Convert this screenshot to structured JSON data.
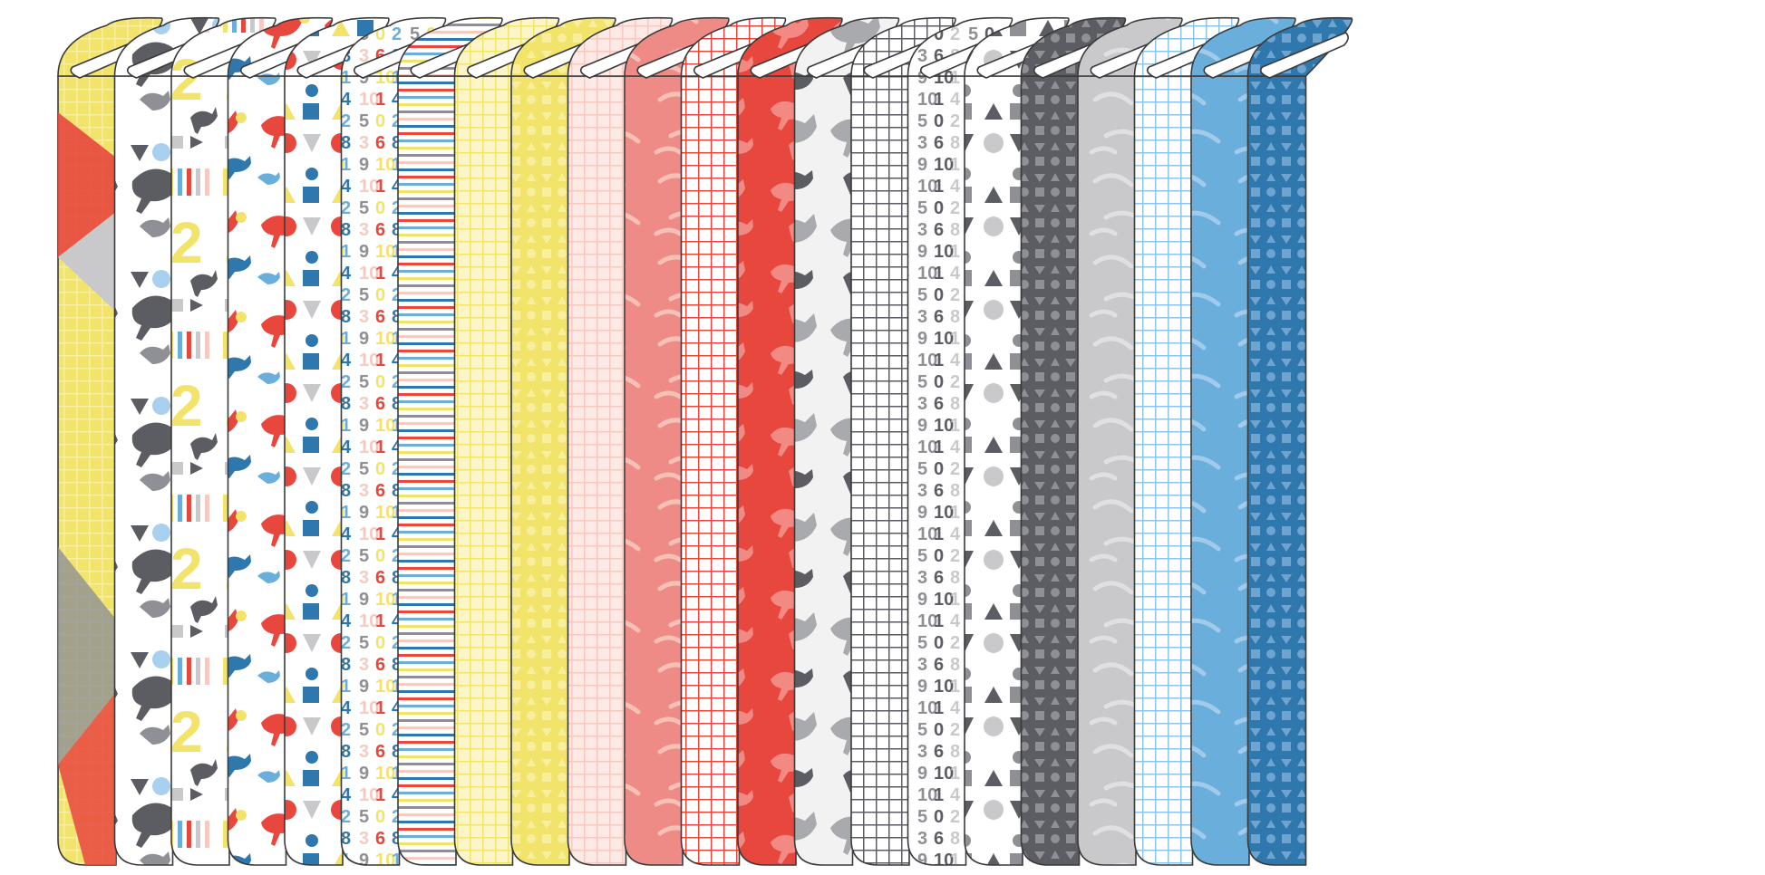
{
  "palette": {
    "red": "#e8473e",
    "coral": "#ef8b86",
    "pink": "#f7c9c0",
    "yellow": "#f2e36b",
    "pale_yellow": "#f7ef9e",
    "light_gray": "#c9c9cb",
    "mid_gray": "#8f9095",
    "dark_gray": "#5c5d63",
    "sky_blue": "#6aaedc",
    "teal_blue": "#2f78ad",
    "outline": "#3a3a3a",
    "white": "#ffffff"
  },
  "bolts": [
    {
      "id": "bolt-01",
      "base": "#f2e36b",
      "pattern": "patchwork-grid",
      "fg": "#e8473e"
    },
    {
      "id": "bolt-02",
      "base": "#ffffff",
      "pattern": "animals-shapes",
      "fg": "#4f5058"
    },
    {
      "id": "bolt-03",
      "base": "#ffffff",
      "pattern": "numbers-animals-stripes",
      "fg": "#f2e36b"
    },
    {
      "id": "bolt-04",
      "base": "#ffffff",
      "pattern": "animal-toss-multicolor",
      "fg": "#e8473e"
    },
    {
      "id": "bolt-05",
      "base": "#ffffff",
      "pattern": "shapes-multicolor",
      "fg": "#2f78ad"
    },
    {
      "id": "bolt-06",
      "base": "#ffffff",
      "pattern": "numbers-multicolor",
      "fg": "#2f78ad"
    },
    {
      "id": "bolt-07",
      "base": "#ffffff",
      "pattern": "stripes-multicolor",
      "fg": "#e8473e"
    },
    {
      "id": "bolt-08",
      "base": "#fbf5c8",
      "pattern": "grid",
      "fg": "#f2e36b"
    },
    {
      "id": "bolt-09",
      "base": "#f2e36b",
      "pattern": "tonal-shapes",
      "fg": "#f7ef9e"
    },
    {
      "id": "bolt-10",
      "base": "#fde9e6",
      "pattern": "grid",
      "fg": "#f7c9c0"
    },
    {
      "id": "bolt-11",
      "base": "#ef8b86",
      "pattern": "brushstrokes",
      "fg": "#f7c9c0"
    },
    {
      "id": "bolt-12",
      "base": "#ffffff",
      "pattern": "grid",
      "fg": "#e8473e"
    },
    {
      "id": "bolt-13",
      "base": "#e8473e",
      "pattern": "tonal-animals",
      "fg": "#f28a83"
    },
    {
      "id": "bolt-14",
      "base": "#f2f2f3",
      "pattern": "animals-gray",
      "fg": "#a9aaae"
    },
    {
      "id": "bolt-15",
      "base": "#ffffff",
      "pattern": "grid",
      "fg": "#5c5d63"
    },
    {
      "id": "bolt-16",
      "base": "#ffffff",
      "pattern": "numbers-gray",
      "fg": "#8f9095"
    },
    {
      "id": "bolt-17",
      "base": "#ffffff",
      "pattern": "shapes-gray",
      "fg": "#6d6e74"
    },
    {
      "id": "bolt-18",
      "base": "#5c5d63",
      "pattern": "tonal-shapes",
      "fg": "#8f9095"
    },
    {
      "id": "bolt-19",
      "base": "#c9c9cb",
      "pattern": "brushstrokes",
      "fg": "#e4e4e6"
    },
    {
      "id": "bolt-20",
      "base": "#ffffff",
      "pattern": "grid",
      "fg": "#8ec4ea"
    },
    {
      "id": "bolt-21",
      "base": "#6aaedc",
      "pattern": "brushstrokes",
      "fg": "#a9d0ee"
    },
    {
      "id": "bolt-22",
      "base": "#2f78ad",
      "pattern": "tonal-shapes",
      "fg": "#6ea4cf"
    }
  ],
  "printed_numbers": [
    "2",
    "3",
    "6",
    "8",
    "9",
    "10",
    "1",
    "4",
    "5",
    "0"
  ]
}
